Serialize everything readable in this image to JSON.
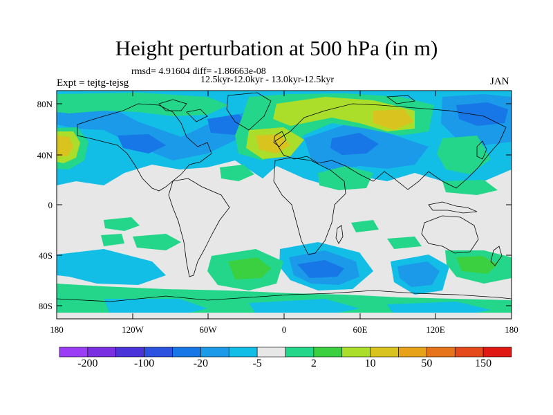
{
  "title": "Height perturbation at 500 hPa (in m)",
  "stats": "rmsd= 4.91604 diff= -1.86663e-08",
  "periods": "12.5kyr-12.0kyr - 13.0kyr-12.5kyr",
  "experiment": "Expt = tejtg-tejsg",
  "month": "JAN",
  "lat_ticks": [
    "80N",
    "40N",
    "0",
    "40S",
    "80S"
  ],
  "lon_ticks": [
    "180",
    "120W",
    "60W",
    "0",
    "60E",
    "120E",
    "180"
  ],
  "colorbar": {
    "colors": [
      "#9b3df5",
      "#7a2fe0",
      "#4a33d8",
      "#2c52e0",
      "#1777e6",
      "#1a9ae8",
      "#12bde6",
      "#e7e7e7",
      "#24d689",
      "#3bd03f",
      "#aade2a",
      "#d9c41f",
      "#e8a21a",
      "#e5741a",
      "#e44a1a",
      "#e01a12"
    ],
    "labels": [
      "-200",
      "-100",
      "-20",
      "-5",
      "2",
      "10",
      "50",
      "150"
    ]
  }
}
